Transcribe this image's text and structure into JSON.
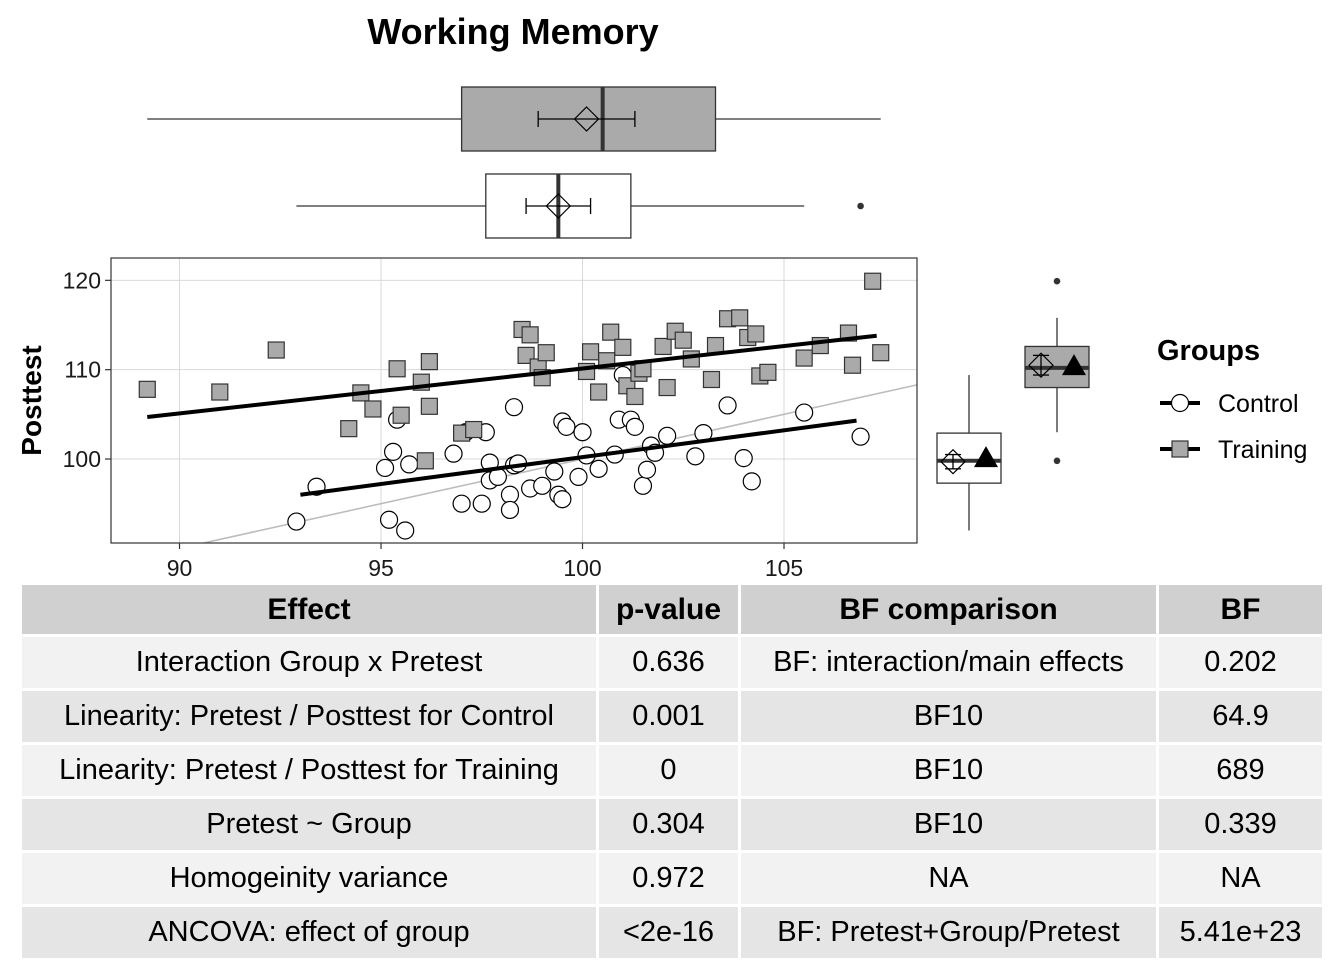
{
  "chart_data": [
    {
      "type": "scatter",
      "title": "Working Memory",
      "xlabel": "",
      "ylabel": "Posttest",
      "xlim": [
        88.3,
        108.3
      ],
      "ylim": [
        90.6,
        122.5
      ],
      "x_ticks": [
        90,
        95,
        100,
        105
      ],
      "y_ticks": [
        100,
        110,
        120
      ],
      "grid": true,
      "legend": {
        "title": "Groups",
        "position": "right",
        "entries": [
          "Control",
          "Training"
        ]
      },
      "identity_line": true,
      "series": [
        {
          "name": "Control",
          "marker": "circle",
          "fill": "#ffffff",
          "regression": {
            "x": [
              93.0,
              106.8
            ],
            "y": [
              96.0,
              104.3
            ]
          },
          "points": [
            [
              92.9,
              93.0
            ],
            [
              93.4,
              96.9
            ],
            [
              95.1,
              99.0
            ],
            [
              95.2,
              93.2
            ],
            [
              95.3,
              100.8
            ],
            [
              95.4,
              104.4
            ],
            [
              95.6,
              92.0
            ],
            [
              95.7,
              99.4
            ],
            [
              96.8,
              100.6
            ],
            [
              97.0,
              95.0
            ],
            [
              97.1,
              103.0
            ],
            [
              97.5,
              95.0
            ],
            [
              97.6,
              103.0
            ],
            [
              97.7,
              99.6
            ],
            [
              97.7,
              97.6
            ],
            [
              97.9,
              98.0
            ],
            [
              98.2,
              96.0
            ],
            [
              98.2,
              94.3
            ],
            [
              98.3,
              99.3
            ],
            [
              98.3,
              105.8
            ],
            [
              98.4,
              99.5
            ],
            [
              98.7,
              96.7
            ],
            [
              99.0,
              97.0
            ],
            [
              99.3,
              98.6
            ],
            [
              99.4,
              96.0
            ],
            [
              99.5,
              95.5
            ],
            [
              99.5,
              104.2
            ],
            [
              99.6,
              103.6
            ],
            [
              99.9,
              98.0
            ],
            [
              100.0,
              103.0
            ],
            [
              100.1,
              100.4
            ],
            [
              100.4,
              98.9
            ],
            [
              100.8,
              100.5
            ],
            [
              100.9,
              104.4
            ],
            [
              101.0,
              109.4
            ],
            [
              101.2,
              104.4
            ],
            [
              101.3,
              103.6
            ],
            [
              101.5,
              97.0
            ],
            [
              101.6,
              98.8
            ],
            [
              101.7,
              101.5
            ],
            [
              101.8,
              100.7
            ],
            [
              102.1,
              102.6
            ],
            [
              102.8,
              100.3
            ],
            [
              103.0,
              102.9
            ],
            [
              103.6,
              106.0
            ],
            [
              104.0,
              100.1
            ],
            [
              104.2,
              97.5
            ],
            [
              105.5,
              105.2
            ],
            [
              106.9,
              102.5
            ]
          ]
        },
        {
          "name": "Training",
          "marker": "square",
          "fill": "#aaaaaa",
          "regression": {
            "x": [
              89.2,
              107.3
            ],
            "y": [
              104.7,
              113.8
            ]
          },
          "points": [
            [
              89.2,
              107.8
            ],
            [
              91.0,
              107.5
            ],
            [
              92.4,
              112.2
            ],
            [
              94.2,
              103.4
            ],
            [
              94.5,
              107.4
            ],
            [
              94.8,
              105.6
            ],
            [
              95.4,
              110.1
            ],
            [
              95.5,
              104.9
            ],
            [
              96.0,
              108.6
            ],
            [
              96.1,
              99.8
            ],
            [
              96.2,
              105.9
            ],
            [
              96.2,
              110.9
            ],
            [
              97.0,
              102.9
            ],
            [
              97.3,
              103.3
            ],
            [
              98.5,
              114.5
            ],
            [
              98.6,
              111.6
            ],
            [
              98.7,
              113.9
            ],
            [
              98.9,
              110.3
            ],
            [
              99.0,
              109.1
            ],
            [
              99.1,
              111.9
            ],
            [
              100.1,
              109.8
            ],
            [
              100.2,
              112.0
            ],
            [
              100.4,
              107.5
            ],
            [
              100.6,
              111.0
            ],
            [
              100.7,
              114.2
            ],
            [
              101.0,
              112.5
            ],
            [
              101.1,
              108.2
            ],
            [
              101.3,
              107.0
            ],
            [
              101.4,
              109.6
            ],
            [
              101.5,
              110.1
            ],
            [
              102.0,
              112.6
            ],
            [
              102.1,
              108.0
            ],
            [
              102.3,
              114.3
            ],
            [
              102.5,
              113.3
            ],
            [
              102.7,
              111.2
            ],
            [
              103.2,
              108.9
            ],
            [
              103.3,
              112.7
            ],
            [
              103.6,
              115.7
            ],
            [
              103.9,
              115.8
            ],
            [
              104.1,
              113.6
            ],
            [
              104.3,
              114.0
            ],
            [
              104.4,
              109.3
            ],
            [
              104.6,
              109.7
            ],
            [
              105.5,
              111.3
            ],
            [
              105.9,
              112.7
            ],
            [
              106.6,
              114.1
            ],
            [
              106.7,
              110.5
            ],
            [
              107.2,
              119.9
            ],
            [
              107.4,
              111.9
            ]
          ]
        }
      ]
    },
    {
      "type": "box",
      "orientation": "horizontal",
      "variable": "Pretest",
      "groups": [
        {
          "name": "Training",
          "fill": "#aaaaaa",
          "whisker_low": 89.2,
          "q1": 97.0,
          "median": 100.5,
          "q3": 103.3,
          "whisker_high": 107.4,
          "mean": 100.1,
          "ci": [
            98.9,
            101.3
          ],
          "outliers": []
        },
        {
          "name": "Control",
          "fill": "#ffffff",
          "whisker_low": 92.9,
          "q1": 97.6,
          "median": 99.4,
          "q3": 101.2,
          "whisker_high": 105.5,
          "mean": 99.4,
          "ci": [
            98.6,
            100.2
          ],
          "outliers": [
            106.9
          ]
        }
      ]
    },
    {
      "type": "box",
      "orientation": "vertical",
      "variable": "Posttest",
      "groups": [
        {
          "name": "Control",
          "fill": "#ffffff",
          "whisker_low": 92.0,
          "q1": 97.3,
          "median": 99.8,
          "q3": 102.9,
          "whisker_high": 109.4,
          "mean": 99.7,
          "ci": [
            98.9,
            100.5
          ],
          "adjusted_mean": 100.1,
          "outliers": []
        },
        {
          "name": "Training",
          "fill": "#aaaaaa",
          "whisker_low": 103.0,
          "q1": 108.0,
          "median": 110.2,
          "q3": 112.6,
          "whisker_high": 115.8,
          "mean": 110.5,
          "ci": [
            109.4,
            111.6
          ],
          "adjusted_mean": 110.4,
          "outliers": [
            119.9,
            99.8
          ]
        }
      ]
    }
  ],
  "table": {
    "headers": [
      "Effect",
      "p-value",
      "BF comparison",
      "BF"
    ],
    "rows": [
      [
        "Interaction Group x Pretest",
        "0.636",
        "BF: interaction/main effects",
        "0.202"
      ],
      [
        "Linearity: Pretest / Posttest for Control",
        "0.001",
        "BF10",
        "64.9"
      ],
      [
        "Linearity: Pretest / Posttest for Training",
        "0",
        "BF10",
        "689"
      ],
      [
        "Pretest ~ Group",
        "0.304",
        "BF10",
        "0.339"
      ],
      [
        "Homogeinity variance",
        "0.972",
        "NA",
        "NA"
      ],
      [
        "ANCOVA: effect of group",
        "<2e-16",
        "BF: Pretest+Group/Pretest",
        "5.41e+23"
      ]
    ]
  }
}
